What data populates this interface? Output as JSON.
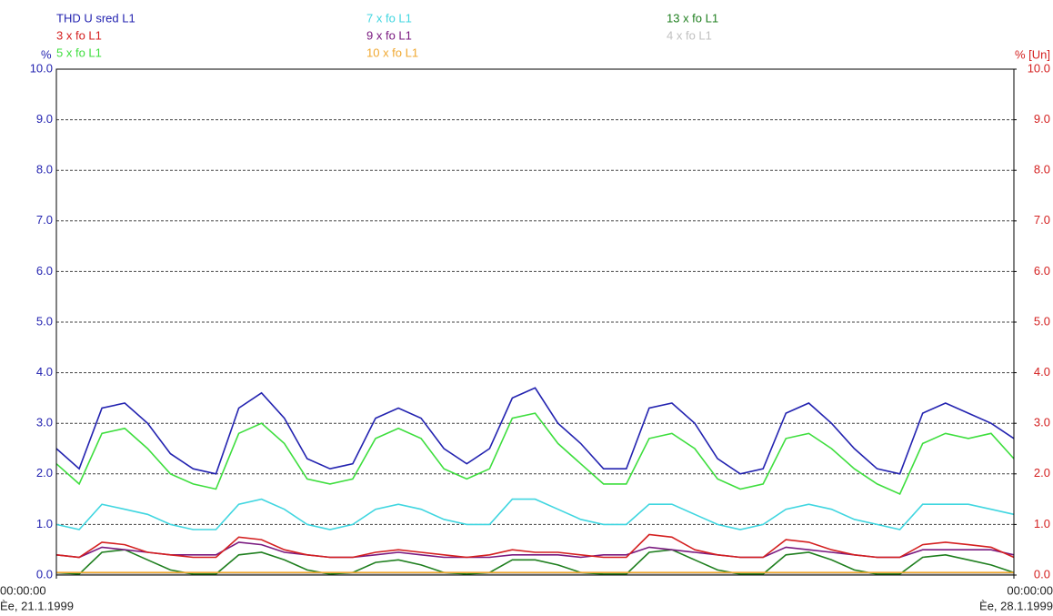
{
  "chart_data": {
    "type": "line",
    "ylabel": "%",
    "y2label": "% [Un]",
    "x": [
      0,
      4,
      8,
      12,
      16,
      20,
      24,
      28,
      32,
      36,
      40,
      44,
      48,
      52,
      56,
      60,
      64,
      68,
      72,
      76,
      80,
      84,
      88,
      92,
      96,
      100,
      104,
      108,
      112,
      116,
      120,
      124,
      128,
      132,
      136,
      140,
      144,
      148,
      152,
      156,
      160,
      164,
      168
    ],
    "xlim": [
      0,
      168
    ],
    "xticks": [
      {
        "value": 0,
        "label": "00:00:00"
      },
      {
        "value": 168,
        "label": "00:00:00"
      }
    ],
    "xtick_dates": [
      "Èe, 21.1.1999",
      "Èe, 28.1.1999"
    ],
    "ylim": [
      0,
      10
    ],
    "yticks": [
      {
        "value": 0,
        "label": "0.0"
      },
      {
        "value": 1,
        "label": "1.0"
      },
      {
        "value": 2,
        "label": "2.0"
      },
      {
        "value": 3,
        "label": "3.0"
      },
      {
        "value": 4,
        "label": "4.0"
      },
      {
        "value": 5,
        "label": "5.0"
      },
      {
        "value": 6,
        "label": "6.0"
      },
      {
        "value": 7,
        "label": "7.0"
      },
      {
        "value": 8,
        "label": "8.0"
      },
      {
        "value": 9,
        "label": "9.0"
      },
      {
        "value": 10,
        "label": "10.0"
      }
    ],
    "y2lim": [
      0,
      10
    ],
    "y2ticks": [
      {
        "value": 0,
        "label": "0.0"
      },
      {
        "value": 1,
        "label": "1.0"
      },
      {
        "value": 2,
        "label": "2.0"
      },
      {
        "value": 3,
        "label": "3.0"
      },
      {
        "value": 4,
        "label": "4.0"
      },
      {
        "value": 5,
        "label": "5.0"
      },
      {
        "value": 6,
        "label": "6.0"
      },
      {
        "value": 7,
        "label": "7.0"
      },
      {
        "value": 8,
        "label": "8.0"
      },
      {
        "value": 9,
        "label": "9.0"
      },
      {
        "value": 10,
        "label": "10.0"
      }
    ],
    "grid": true,
    "series": [
      {
        "name": "THD U sred L1",
        "color": "#2323b0",
        "values": [
          2.5,
          2.1,
          3.3,
          3.4,
          3.0,
          2.4,
          2.1,
          2.0,
          3.3,
          3.6,
          3.1,
          2.3,
          2.1,
          2.2,
          3.1,
          3.3,
          3.1,
          2.5,
          2.2,
          2.5,
          3.5,
          3.7,
          3.0,
          2.6,
          2.1,
          2.1,
          3.3,
          3.4,
          3.0,
          2.3,
          2.0,
          2.1,
          3.2,
          3.4,
          3.0,
          2.5,
          2.1,
          2.0,
          3.2,
          3.4,
          3.2,
          3.0,
          2.7
        ]
      },
      {
        "name": "3 x fo L1",
        "color": "#d42020",
        "values": [
          0.4,
          0.35,
          0.65,
          0.6,
          0.45,
          0.4,
          0.35,
          0.35,
          0.75,
          0.7,
          0.5,
          0.4,
          0.35,
          0.35,
          0.45,
          0.5,
          0.45,
          0.4,
          0.35,
          0.4,
          0.5,
          0.45,
          0.45,
          0.4,
          0.35,
          0.35,
          0.8,
          0.75,
          0.5,
          0.4,
          0.35,
          0.35,
          0.7,
          0.65,
          0.5,
          0.4,
          0.35,
          0.35,
          0.6,
          0.65,
          0.6,
          0.55,
          0.35
        ]
      },
      {
        "name": "5 x fo L1",
        "color": "#3ede3e",
        "values": [
          2.2,
          1.8,
          2.8,
          2.9,
          2.5,
          2.0,
          1.8,
          1.7,
          2.8,
          3.0,
          2.6,
          1.9,
          1.8,
          1.9,
          2.7,
          2.9,
          2.7,
          2.1,
          1.9,
          2.1,
          3.1,
          3.2,
          2.6,
          2.2,
          1.8,
          1.8,
          2.7,
          2.8,
          2.5,
          1.9,
          1.7,
          1.8,
          2.7,
          2.8,
          2.5,
          2.1,
          1.8,
          1.6,
          2.6,
          2.8,
          2.7,
          2.8,
          2.3
        ]
      },
      {
        "name": "7 x fo L1",
        "color": "#40d6e0",
        "values": [
          1.0,
          0.9,
          1.4,
          1.3,
          1.2,
          1.0,
          0.9,
          0.9,
          1.4,
          1.5,
          1.3,
          1.0,
          0.9,
          1.0,
          1.3,
          1.4,
          1.3,
          1.1,
          1.0,
          1.0,
          1.5,
          1.5,
          1.3,
          1.1,
          1.0,
          1.0,
          1.4,
          1.4,
          1.2,
          1.0,
          0.9,
          1.0,
          1.3,
          1.4,
          1.3,
          1.1,
          1.0,
          0.9,
          1.4,
          1.4,
          1.4,
          1.3,
          1.2
        ]
      },
      {
        "name": "9 x fo L1",
        "color": "#7a1a80",
        "values": [
          0.4,
          0.35,
          0.55,
          0.5,
          0.45,
          0.4,
          0.4,
          0.4,
          0.65,
          0.6,
          0.45,
          0.4,
          0.35,
          0.35,
          0.4,
          0.45,
          0.4,
          0.35,
          0.35,
          0.35,
          0.4,
          0.4,
          0.4,
          0.35,
          0.4,
          0.4,
          0.55,
          0.5,
          0.45,
          0.4,
          0.35,
          0.35,
          0.55,
          0.5,
          0.45,
          0.4,
          0.35,
          0.35,
          0.5,
          0.5,
          0.5,
          0.5,
          0.4
        ]
      },
      {
        "name": "10 x fo L1",
        "color": "#f0a830",
        "values": [
          0.05,
          0.05,
          0.05,
          0.05,
          0.05,
          0.05,
          0.05,
          0.05,
          0.05,
          0.05,
          0.05,
          0.05,
          0.05,
          0.05,
          0.05,
          0.05,
          0.05,
          0.05,
          0.05,
          0.05,
          0.05,
          0.05,
          0.05,
          0.05,
          0.05,
          0.05,
          0.05,
          0.05,
          0.05,
          0.05,
          0.05,
          0.05,
          0.05,
          0.05,
          0.05,
          0.05,
          0.05,
          0.05,
          0.05,
          0.05,
          0.05,
          0.05,
          0.05
        ]
      },
      {
        "name": "13 x fo L1",
        "color": "#1f7f1f",
        "values": [
          0.05,
          0.02,
          0.45,
          0.5,
          0.3,
          0.1,
          0.02,
          0.02,
          0.4,
          0.45,
          0.3,
          0.1,
          0.02,
          0.05,
          0.25,
          0.3,
          0.2,
          0.05,
          0.02,
          0.05,
          0.3,
          0.3,
          0.2,
          0.05,
          0.02,
          0.02,
          0.45,
          0.5,
          0.3,
          0.1,
          0.02,
          0.02,
          0.4,
          0.45,
          0.3,
          0.1,
          0.02,
          0.02,
          0.35,
          0.4,
          0.3,
          0.2,
          0.05
        ]
      },
      {
        "name": "4 x fo L1",
        "color": "#c0c0c0",
        "values": [
          0.02,
          0.02,
          0.02,
          0.02,
          0.02,
          0.02,
          0.02,
          0.02,
          0.02,
          0.02,
          0.02,
          0.02,
          0.02,
          0.02,
          0.02,
          0.02,
          0.02,
          0.02,
          0.02,
          0.02,
          0.02,
          0.02,
          0.02,
          0.02,
          0.02,
          0.02,
          0.02,
          0.02,
          0.02,
          0.02,
          0.02,
          0.02,
          0.02,
          0.02,
          0.02,
          0.02,
          0.02,
          0.02,
          0.02,
          0.02,
          0.02,
          0.02,
          0.02
        ]
      }
    ]
  }
}
